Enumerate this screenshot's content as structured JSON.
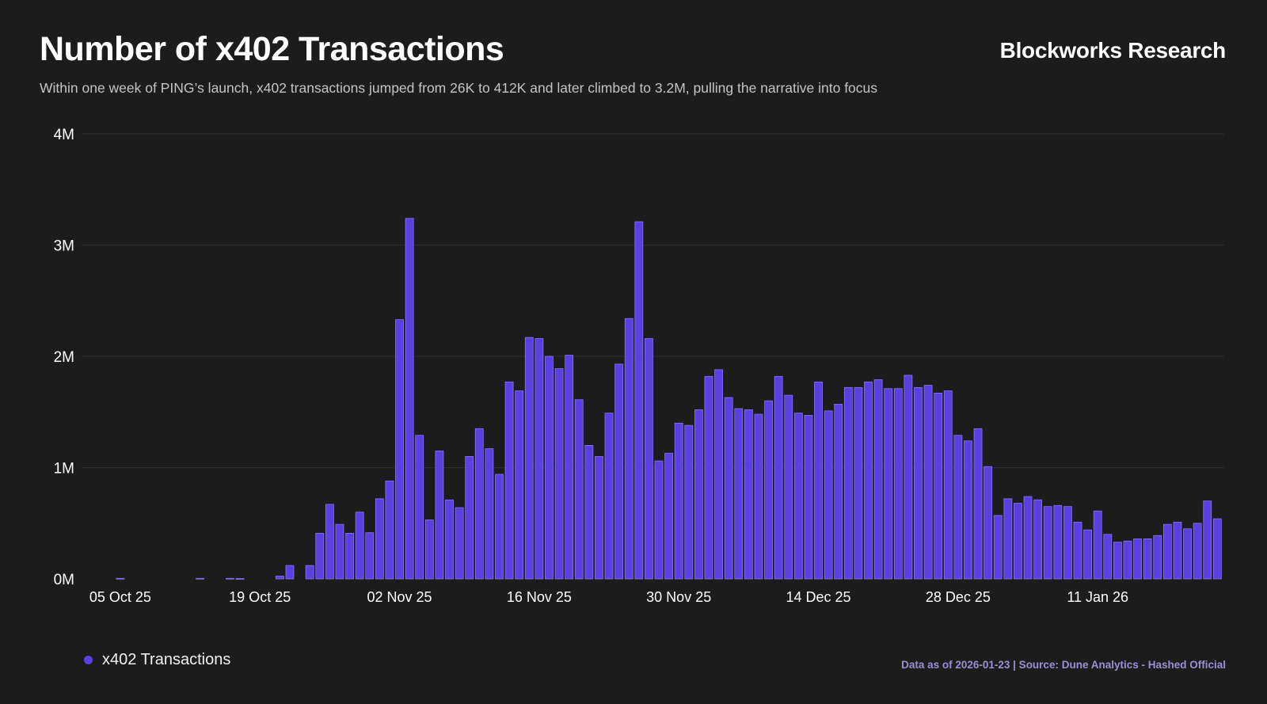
{
  "header": {
    "title": "Number of x402 Transactions",
    "brand": "Blockworks Research",
    "subtitle": "Within one week of PING’s launch, x402 transactions jumped from 26K to 412K and later climbed to 3.2M, pulling the narrative into focus"
  },
  "legend": {
    "label": "x402 Transactions"
  },
  "footer": {
    "source": "Data as of 2026-01-23 | Source: Dune Analytics - Hashed Official"
  },
  "colors": {
    "bar": "#5b3fe0",
    "bar_edge": "#8a74f2",
    "grid": "#2e2e2e",
    "background": "#1c1c1c"
  },
  "chart_data": {
    "type": "bar",
    "title": "Number of x402 Transactions",
    "xlabel": "",
    "ylabel": "",
    "start_date": "2025-10-01",
    "ylim": [
      0,
      4000000
    ],
    "yticks": [
      {
        "value": 0,
        "label": "0M"
      },
      {
        "value": 1000000,
        "label": "1M"
      },
      {
        "value": 2000000,
        "label": "2M"
      },
      {
        "value": 3000000,
        "label": "3M"
      },
      {
        "value": 4000000,
        "label": "4M"
      }
    ],
    "xticks": [
      {
        "date": "2025-10-05",
        "label": "05 Oct 25"
      },
      {
        "date": "2025-10-19",
        "label": "19 Oct 25"
      },
      {
        "date": "2025-11-02",
        "label": "02 Nov 25"
      },
      {
        "date": "2025-11-16",
        "label": "16 Nov 25"
      },
      {
        "date": "2025-11-30",
        "label": "30 Nov 25"
      },
      {
        "date": "2025-12-14",
        "label": "14 Dec 25"
      },
      {
        "date": "2025-12-28",
        "label": "28 Dec 25"
      },
      {
        "date": "2026-01-11",
        "label": "11 Jan 26"
      }
    ],
    "grid": true,
    "legend_position": "bottom-left",
    "series": [
      {
        "name": "x402 Transactions",
        "values": [
          0,
          0,
          0,
          0,
          5000,
          0,
          0,
          0,
          0,
          0,
          0,
          0,
          5000,
          0,
          0,
          5000,
          3000,
          0,
          0,
          0,
          25000,
          120000,
          0,
          120000,
          410000,
          670000,
          490000,
          410000,
          600000,
          415000,
          720000,
          880000,
          2330000,
          3240000,
          1290000,
          530000,
          1150000,
          710000,
          640000,
          1100000,
          1350000,
          1170000,
          940000,
          1770000,
          1690000,
          2170000,
          2160000,
          2000000,
          1890000,
          2010000,
          1610000,
          1200000,
          1100000,
          1490000,
          1930000,
          2340000,
          3210000,
          2160000,
          1060000,
          1130000,
          1400000,
          1380000,
          1520000,
          1820000,
          1880000,
          1630000,
          1530000,
          1520000,
          1480000,
          1600000,
          1820000,
          1650000,
          1490000,
          1470000,
          1770000,
          1510000,
          1570000,
          1720000,
          1720000,
          1770000,
          1790000,
          1710000,
          1710000,
          1830000,
          1720000,
          1740000,
          1670000,
          1690000,
          1290000,
          1240000,
          1350000,
          1010000,
          570000,
          720000,
          680000,
          740000,
          710000,
          650000,
          660000,
          650000,
          510000,
          440000,
          610000,
          400000,
          330000,
          340000,
          360000,
          360000,
          390000,
          490000,
          510000,
          450000,
          500000,
          700000,
          540000
        ]
      }
    ]
  }
}
